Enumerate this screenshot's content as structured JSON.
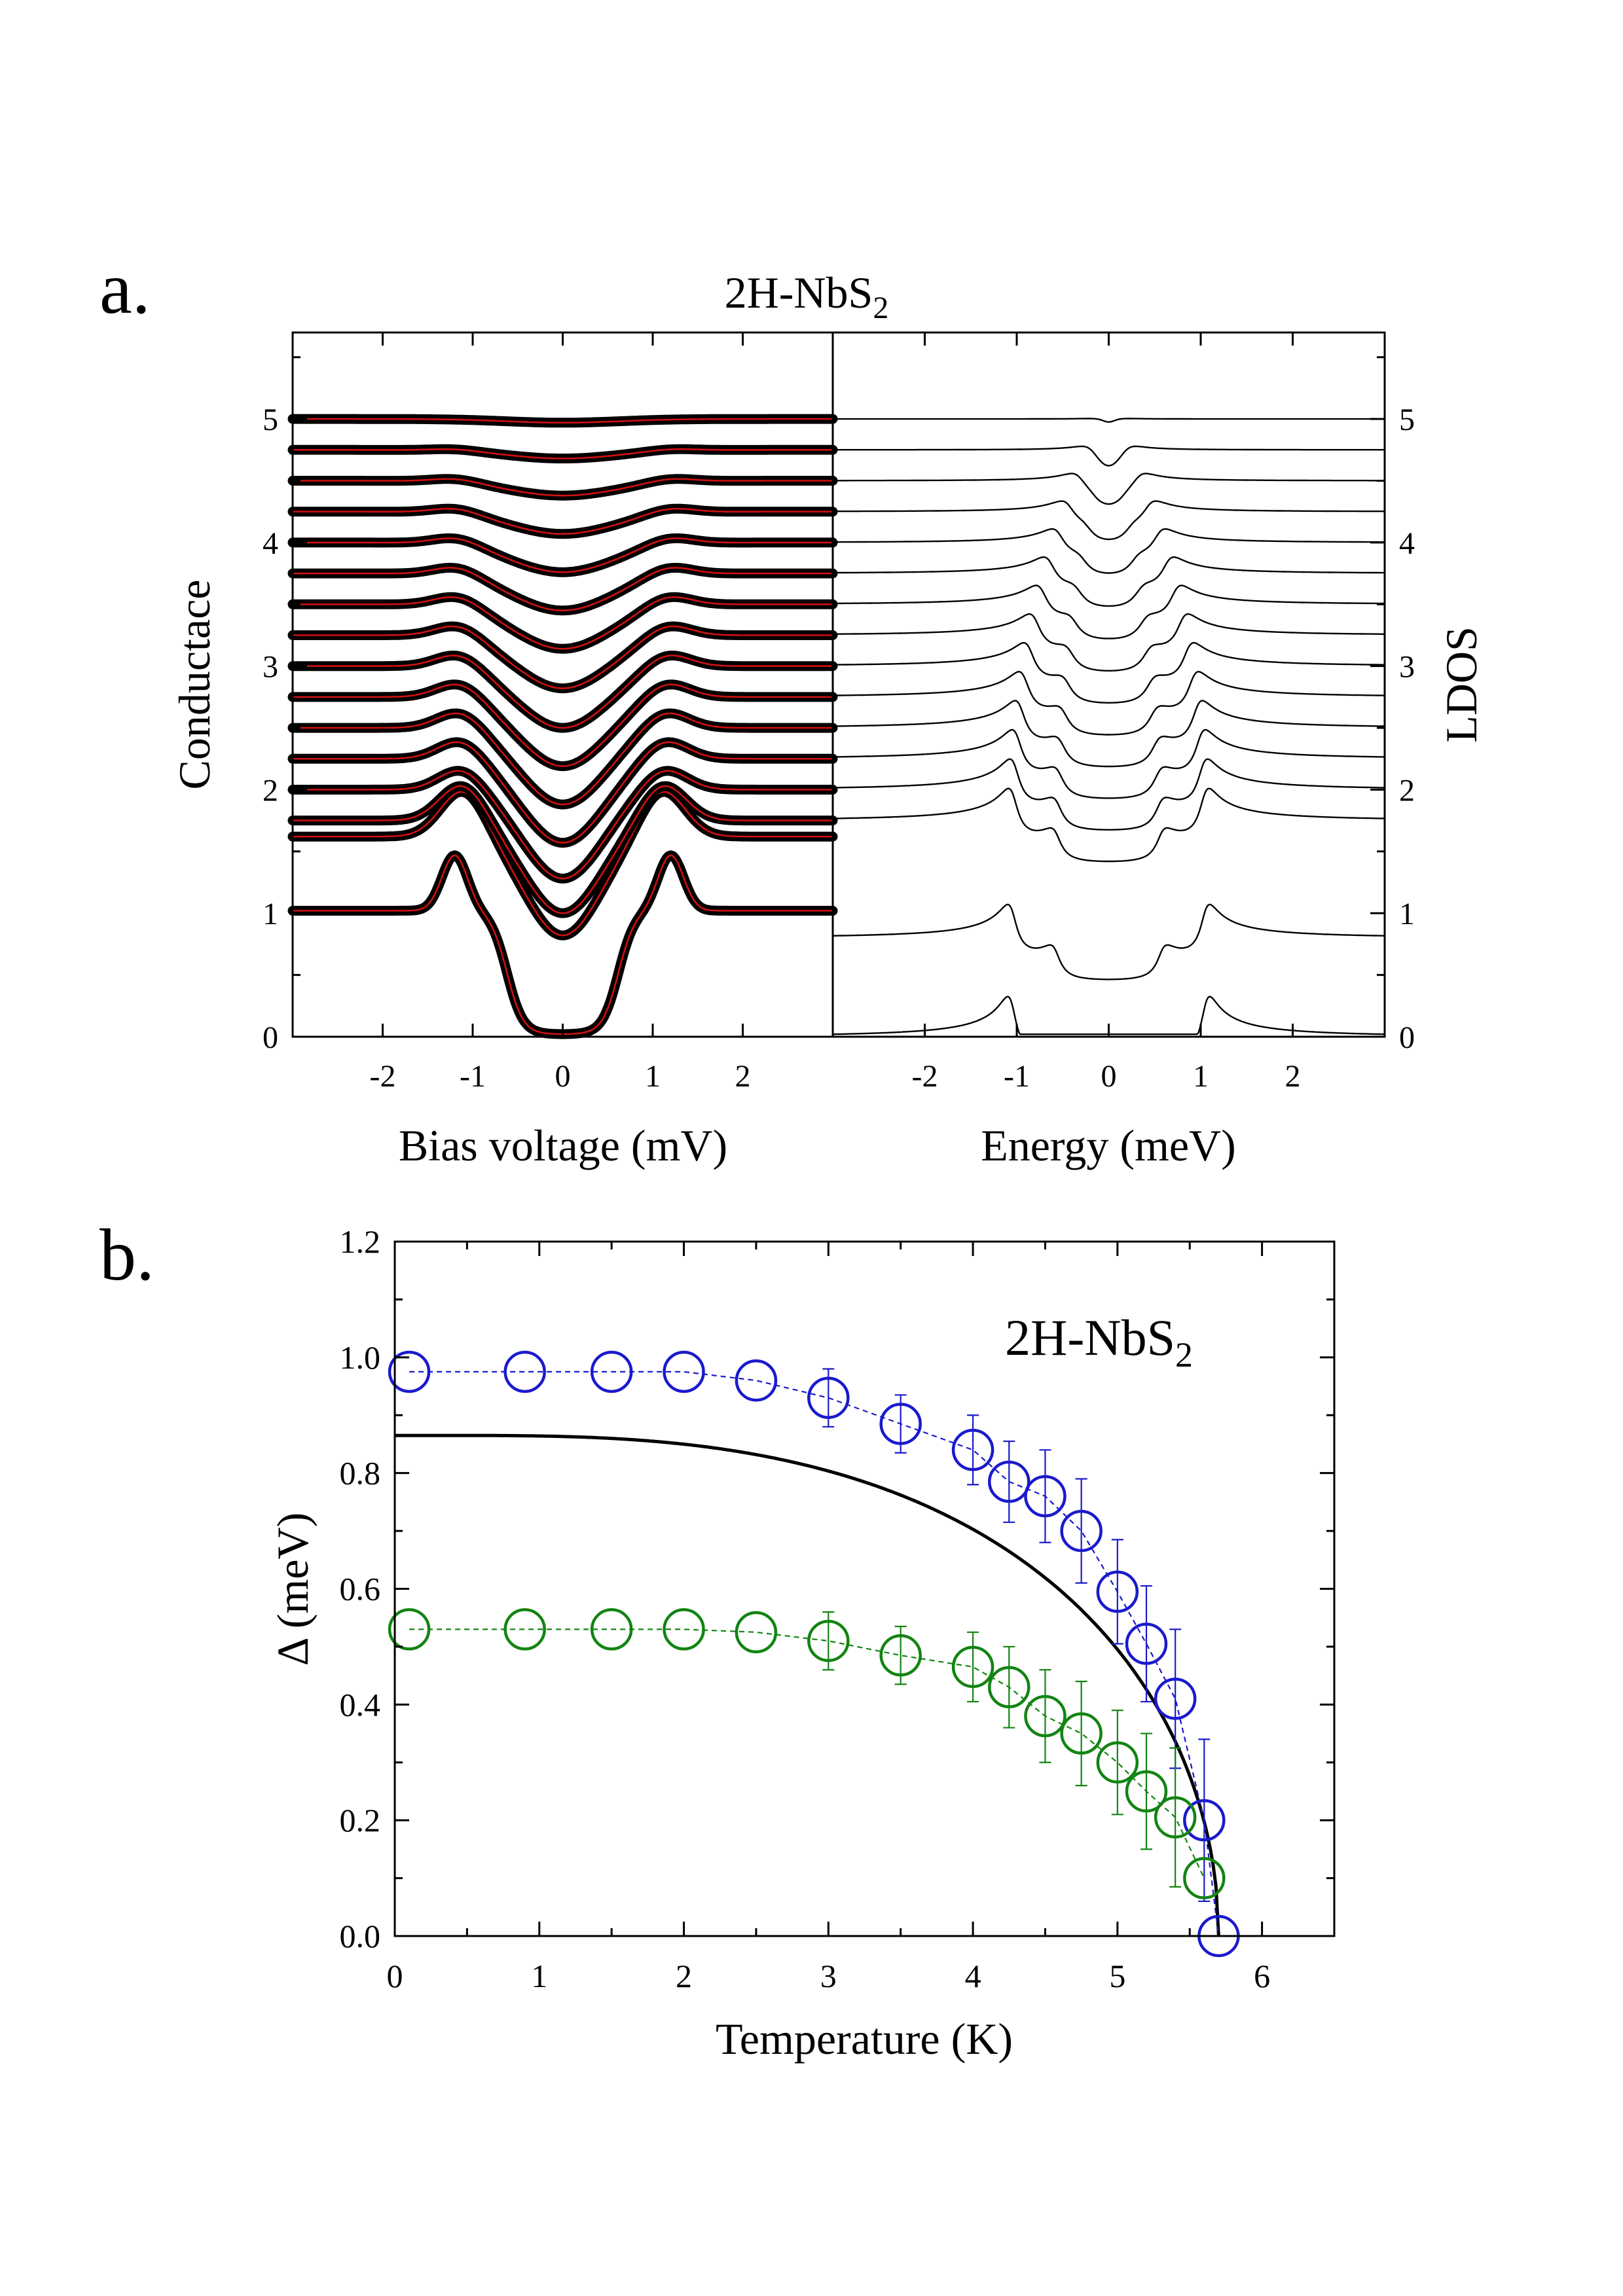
{
  "panel_a": {
    "label": "a.",
    "title_main": "2H-NbS",
    "title_sub": "2"
  },
  "panel_b": {
    "label": "b.",
    "inset_main": "2H-NbS",
    "inset_sub": "2"
  },
  "chart_data": [
    {
      "type": "line",
      "panel": "a-left",
      "xlabel": "Bias voltage (mV)",
      "ylabel": "Conductace",
      "xlim": [
        -3,
        3
      ],
      "ylim": [
        0,
        5.7
      ],
      "xticks": [
        -2,
        -1,
        0,
        1,
        2
      ],
      "yticks": [
        0,
        1,
        2,
        3,
        4,
        5
      ],
      "marker_color": "#000000",
      "fit_color": "#d01010",
      "curve_offsets": [
        0,
        0.8,
        1.75,
        2.0,
        2.25,
        2.5,
        2.75,
        3.0,
        3.25,
        3.5,
        3.75,
        4.0,
        4.25,
        4.5,
        4.75,
        5.0
      ],
      "curve_dip_depth": [
        1.0,
        0.8,
        0.75,
        0.72,
        0.68,
        0.62,
        0.56,
        0.5,
        0.43,
        0.36,
        0.3,
        0.24,
        0.18,
        0.12,
        0.07,
        0.03
      ],
      "grid": false
    },
    {
      "type": "line",
      "panel": "a-right",
      "xlabel": "Energy (meV)",
      "ylabel": "LDOS",
      "xlim": [
        -3,
        3
      ],
      "ylim": [
        0,
        5.7
      ],
      "xticks": [
        -2,
        -1,
        0,
        1,
        2
      ],
      "yticks": [
        0,
        1,
        2,
        3,
        4,
        5
      ],
      "curve_offsets": [
        0,
        0.8,
        1.75,
        2.0,
        2.25,
        2.5,
        2.75,
        3.0,
        3.25,
        3.5,
        3.75,
        4.0,
        4.25,
        4.5,
        4.75,
        5.0
      ],
      "grid": false
    },
    {
      "type": "scatter",
      "panel": "b",
      "xlabel": "Temperature (K)",
      "ylabel": "Δ (meV)",
      "xlim": [
        0,
        6.5
      ],
      "ylim": [
        0,
        1.2
      ],
      "xticks": [
        0,
        1,
        2,
        3,
        4,
        5,
        6
      ],
      "yticks": [
        0.0,
        0.2,
        0.4,
        0.6,
        0.8,
        1.0,
        1.2
      ],
      "grid": false,
      "series": [
        {
          "color": "#1a1acc",
          "x": [
            0.1,
            0.9,
            1.5,
            2.0,
            2.5,
            3.0,
            3.5,
            4.0,
            4.25,
            4.5,
            4.75,
            5.0,
            5.2,
            5.4,
            5.6,
            5.7
          ],
          "y": [
            0.975,
            0.975,
            0.975,
            0.975,
            0.96,
            0.93,
            0.885,
            0.84,
            0.785,
            0.76,
            0.7,
            0.595,
            0.505,
            0.41,
            0.2,
            0.0
          ],
          "err": [
            0,
            0,
            0,
            0,
            0,
            0.05,
            0.05,
            0.06,
            0.07,
            0.08,
            0.09,
            0.09,
            0.1,
            0.12,
            0.14,
            0
          ]
        },
        {
          "color": "#128412",
          "x": [
            0.1,
            0.9,
            1.5,
            2.0,
            2.5,
            3.0,
            3.5,
            4.0,
            4.25,
            4.5,
            4.75,
            5.0,
            5.2,
            5.4,
            5.6
          ],
          "y": [
            0.53,
            0.53,
            0.53,
            0.53,
            0.525,
            0.51,
            0.485,
            0.465,
            0.43,
            0.38,
            0.35,
            0.3,
            0.25,
            0.205,
            0.1
          ],
          "err": [
            0,
            0,
            0,
            0,
            0,
            0.05,
            0.05,
            0.06,
            0.07,
            0.08,
            0.09,
            0.09,
            0.1,
            0.12,
            0
          ]
        },
        {
          "color": "#000000",
          "kind": "solid-curve",
          "delta0": 0.865,
          "tc": 5.7
        }
      ]
    }
  ]
}
